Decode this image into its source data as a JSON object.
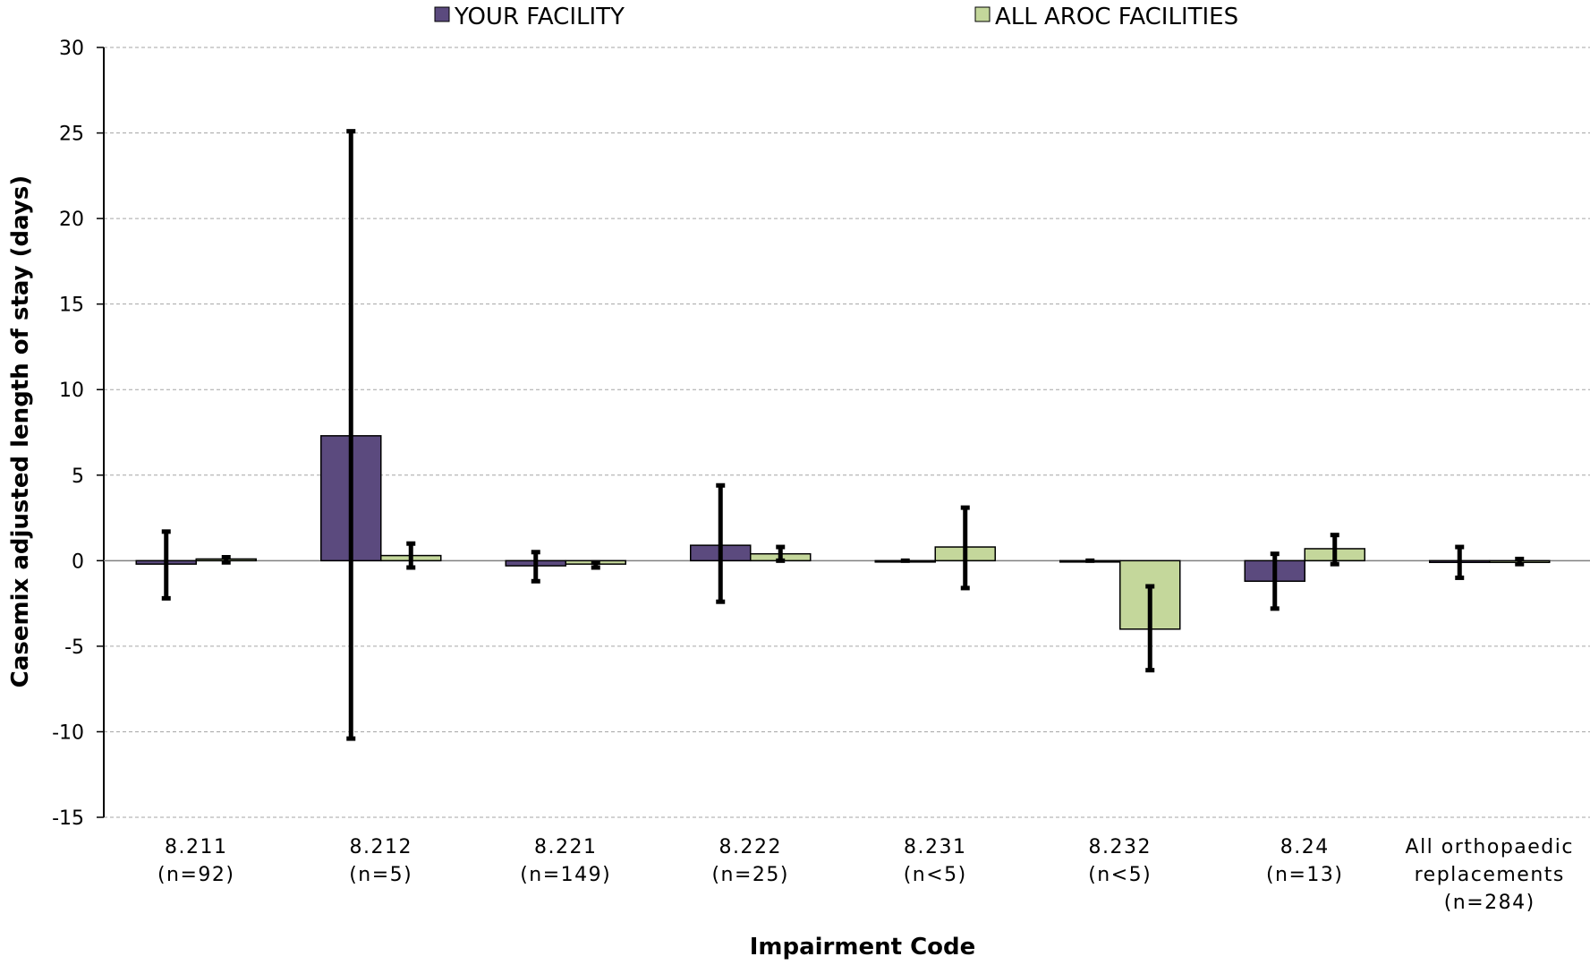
{
  "chart_data": {
    "type": "bar",
    "title": "",
    "xlabel": "Impairment Code",
    "ylabel": "Casemix adjusted length of stay (days)",
    "ylim": [
      -15,
      30
    ],
    "yticks": [
      30,
      25,
      20,
      15,
      10,
      5,
      0,
      -5,
      -10,
      -15
    ],
    "ytick_labels": [
      "30",
      "25",
      "20",
      "15",
      "10",
      "5",
      "0",
      "-5",
      "-10",
      "-15"
    ],
    "grid": "horizontal dashed",
    "legend_position": "top",
    "categories": [
      [
        "8.211",
        "(n=92)"
      ],
      [
        "8.212",
        "(n=5)"
      ],
      [
        "8.221",
        "(n=149)"
      ],
      [
        "8.222",
        "(n=25)"
      ],
      [
        "8.231",
        "(n<5)"
      ],
      [
        "8.232",
        "(n<5)"
      ],
      [
        "8.24",
        "(n=13)"
      ],
      [
        "All orthopaedic",
        "replacements",
        "(n=284)"
      ]
    ],
    "series": [
      {
        "name": "YOUR FACILITY",
        "color": "#5b4a7e",
        "values": [
          -0.2,
          7.3,
          -0.3,
          0.9,
          0,
          0,
          -1.2,
          -0.1
        ],
        "error_low": [
          -2.2,
          -10.4,
          -1.2,
          -2.4,
          0,
          0,
          -2.8,
          -1.0
        ],
        "error_high": [
          1.7,
          25.1,
          0.5,
          4.4,
          0,
          0,
          0.4,
          0.8
        ]
      },
      {
        "name": "ALL AROC FACILITIES",
        "color": "#c4d79b",
        "values": [
          0.1,
          0.3,
          -0.2,
          0.4,
          0.8,
          -4.0,
          0.7,
          -0.1
        ],
        "error_low": [
          -0.1,
          -0.4,
          -0.4,
          0.0,
          -1.6,
          -6.4,
          -0.2,
          -0.2
        ],
        "error_high": [
          0.2,
          1.0,
          -0.1,
          0.8,
          3.1,
          -1.5,
          1.5,
          0.1
        ]
      }
    ]
  }
}
